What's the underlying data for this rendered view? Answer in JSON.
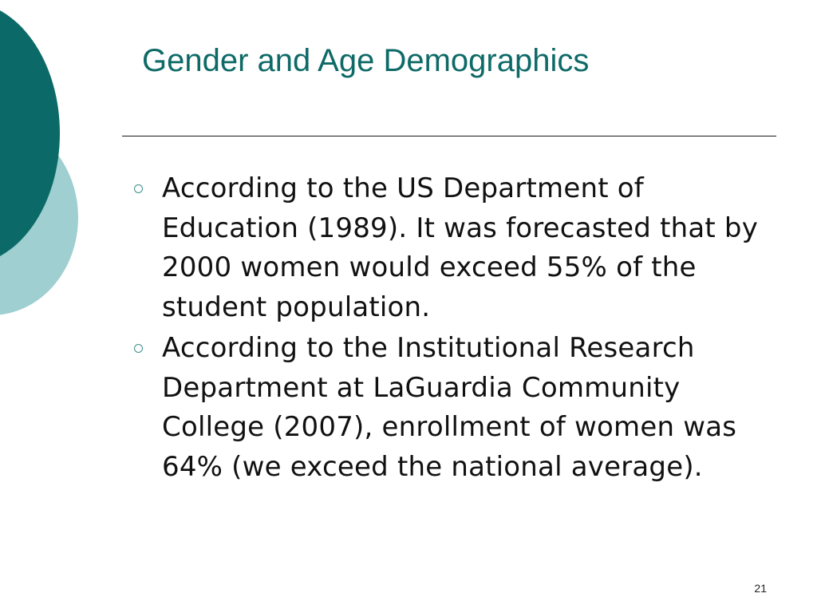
{
  "slide": {
    "title": "Gender and Age Demographics",
    "bullets": [
      {
        "text": "According to the US Department of Education (1989). It was forecasted that by 2000 women would exceed 55% of the student population."
      },
      {
        "text": "According to the Institutional Research Department at LaGuardia Community College (2007), enrollment of women was 64% (we exceed the national average)."
      }
    ],
    "page_number": "21"
  },
  "colors": {
    "title": "#0e6a67",
    "dark_circle": "#0b6a67",
    "light_circle": "#9fcfd1",
    "bullet_marker": "#3a8f8d"
  },
  "icons": {
    "bullet_marker": "hollow-circle-bullet-icon",
    "decoration": "overlapping-circles-decoration"
  }
}
